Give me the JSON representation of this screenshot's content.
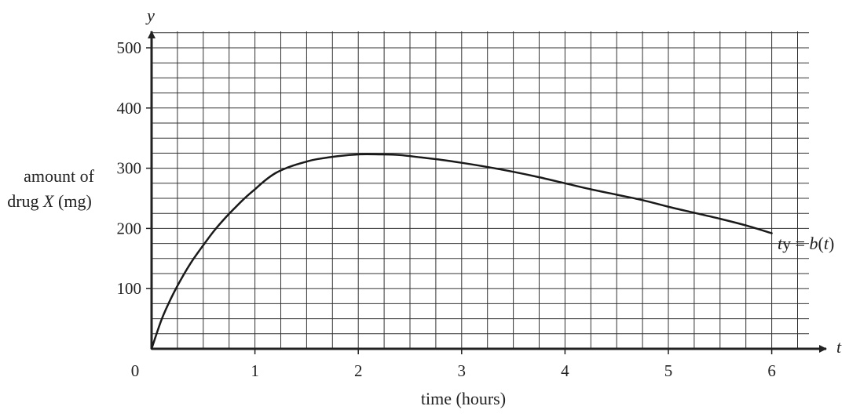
{
  "chart_data": {
    "type": "line",
    "xlabel": "time (hours)",
    "ylabel_line1": "amount of",
    "ylabel_line2_prefix": "drug ",
    "ylabel_line2_var": "X",
    "ylabel_line2_suffix": " (mg)",
    "x_axis_var": "t",
    "y_axis_var": "y",
    "origin_label": "0",
    "xlim": [
      0,
      6.5
    ],
    "ylim": [
      0,
      500
    ],
    "x_ticks": [
      1,
      2,
      3,
      4,
      5,
      6
    ],
    "x_tick_labels": [
      "1",
      "2",
      "3",
      "4",
      "5",
      "6"
    ],
    "y_ticks": [
      100,
      200,
      300,
      400,
      500
    ],
    "y_tick_labels": [
      "100",
      "200",
      "300",
      "400",
      "500"
    ],
    "x_minor_step": 0.25,
    "y_minor_step": 25,
    "grid": true,
    "series": [
      {
        "label_prefix": "y = ",
        "label_fn": "b",
        "label_paren_open": "(",
        "label_var": "t",
        "label_paren_close": ")",
        "x": [
          0,
          0.1,
          0.2,
          0.3,
          0.4,
          0.5,
          0.6,
          0.7,
          0.8,
          0.9,
          1.0,
          1.1,
          1.2,
          1.3,
          1.4,
          1.5,
          1.6,
          1.8,
          2.0,
          2.2,
          2.4,
          2.6,
          2.8,
          3.0,
          3.25,
          3.5,
          3.75,
          4.0,
          4.25,
          4.5,
          4.75,
          5.0,
          5.25,
          5.5,
          5.75,
          6.0
        ],
        "y": [
          0,
          50,
          88,
          120,
          148,
          172,
          195,
          215,
          233,
          250,
          265,
          280,
          292,
          300,
          306,
          311,
          315,
          320,
          323,
          323,
          322,
          318,
          314,
          309,
          302,
          294,
          285,
          275,
          265,
          256,
          247,
          236,
          226,
          216,
          205,
          192
        ]
      }
    ]
  }
}
